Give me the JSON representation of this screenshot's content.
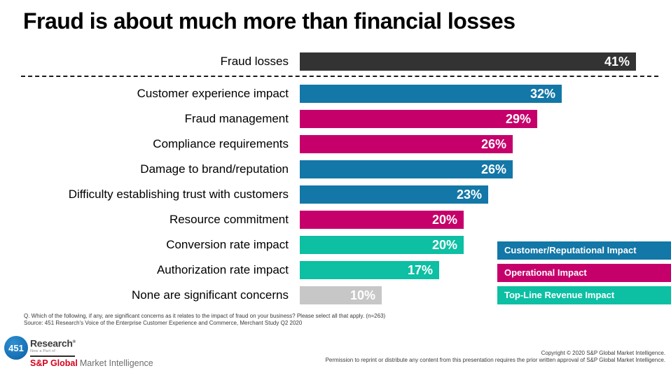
{
  "title": "Fraud is about much more than financial losses",
  "colors": {
    "financial": "#333333",
    "customer": "#1377A7",
    "operational": "#C6006B",
    "revenue": "#0DBFA3",
    "none": "#C7C7C7"
  },
  "chart_data": {
    "type": "bar",
    "orientation": "horizontal",
    "unit": "%",
    "xlim": [
      0,
      45
    ],
    "items": [
      {
        "label": "Fraud losses",
        "value": 41,
        "group": "financial",
        "divider_after": true
      },
      {
        "label": "Customer experience impact",
        "value": 32,
        "group": "customer"
      },
      {
        "label": "Fraud management",
        "value": 29,
        "group": "operational"
      },
      {
        "label": "Compliance requirements",
        "value": 26,
        "group": "operational"
      },
      {
        "label": "Damage to brand/reputation",
        "value": 26,
        "group": "customer"
      },
      {
        "label": "Difficulty establishing trust with customers",
        "value": 23,
        "group": "customer"
      },
      {
        "label": "Resource commitment",
        "value": 20,
        "group": "operational"
      },
      {
        "label": "Conversion rate impact",
        "value": 20,
        "group": "revenue"
      },
      {
        "label": "Authorization rate impact",
        "value": 17,
        "group": "revenue"
      },
      {
        "label": "None are significant concerns",
        "value": 10,
        "group": "none"
      }
    ],
    "legend": [
      {
        "label": "Customer/Reputational Impact",
        "group": "customer"
      },
      {
        "label": "Operational Impact",
        "group": "operational"
      },
      {
        "label": "Top-Line Revenue Impact",
        "group": "revenue"
      }
    ],
    "legend_position": "right-bottom"
  },
  "footnote": {
    "question": "Q. Which of the following, if any, are significant concerns as it relates to the impact of fraud on your business? Please select all that apply. (n=263)",
    "source": "Source: 451 Research's Voice of the Enterprise Customer Experience and Commerce, Merchant Study Q2 2020"
  },
  "footer": {
    "logo": {
      "badge": "451",
      "name": "Research",
      "mark": "®",
      "tagline": "Now a Part of",
      "brand": "S&P Global",
      "brand_suffix": "Market Intelligence"
    },
    "copyright_line1": "Copyright © 2020 S&P Global Market Intelligence.",
    "copyright_line2": "Permission to reprint or distribute any content from this presentation requires the prior written approval of S&P Global Market Intelligence."
  }
}
